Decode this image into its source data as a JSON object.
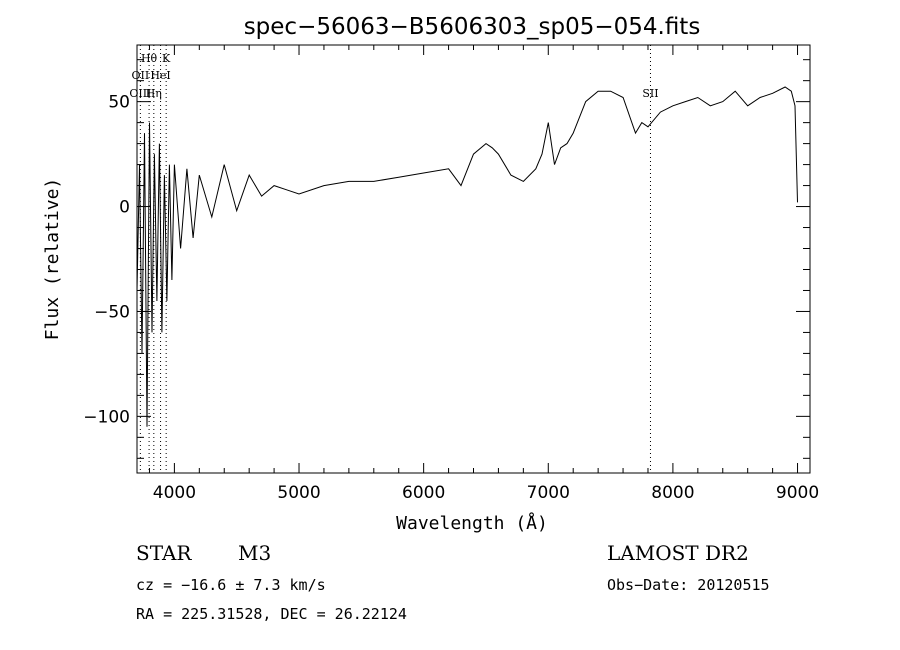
{
  "chart_data": {
    "type": "line",
    "title": "spec−56063−B5606303_sp05−054.fits",
    "xlabel": "Wavelength (Å)",
    "ylabel": "Flux (relative)",
    "xlim": [
      3700,
      9100
    ],
    "ylim": [
      -127,
      77
    ],
    "x_ticks": [
      4000,
      5000,
      6000,
      7000,
      8000,
      9000
    ],
    "y_ticks": [
      -100,
      -50,
      0,
      50
    ],
    "grid": false,
    "line_color": "#000000",
    "series": [
      {
        "x": [
          3700,
          3720,
          3740,
          3760,
          3780,
          3800,
          3820,
          3840,
          3860,
          3880,
          3900,
          3920,
          3940,
          3960,
          3980,
          4000,
          4050,
          4100,
          4150,
          4200,
          4300,
          4400,
          4500,
          4600,
          4700,
          4800,
          4900,
          5000,
          5200,
          5400,
          5600,
          5800,
          6000,
          6200,
          6300,
          6400,
          6500,
          6550,
          6600,
          6700,
          6800,
          6900,
          6950,
          7000,
          7050,
          7100,
          7150,
          7200,
          7300,
          7400,
          7500,
          7600,
          7700,
          7750,
          7800,
          7900,
          8000,
          8100,
          8200,
          8300,
          8400,
          8500,
          8600,
          8700,
          8800,
          8900,
          8950,
          8980,
          9000
        ],
        "y": [
          -40,
          20,
          -70,
          35,
          -105,
          40,
          -60,
          25,
          -45,
          30,
          -60,
          15,
          -45,
          20,
          -35,
          20,
          -20,
          18,
          -15,
          15,
          -5,
          20,
          -2,
          15,
          5,
          10,
          8,
          6,
          10,
          12,
          12,
          14,
          16,
          18,
          10,
          25,
          30,
          28,
          25,
          15,
          12,
          18,
          25,
          40,
          20,
          28,
          30,
          35,
          50,
          55,
          55,
          52,
          35,
          40,
          38,
          45,
          48,
          50,
          52,
          48,
          50,
          55,
          48,
          52,
          54,
          57,
          55,
          48,
          2
        ]
      }
    ],
    "annotations": [
      {
        "label": "Hθ",
        "x": 3797
      },
      {
        "label": "K",
        "x": 3934
      },
      {
        "label": "OII",
        "x": 3727
      },
      {
        "label": "HeI",
        "x": 3889
      },
      {
        "label": "OIII",
        "x": 3727
      },
      {
        "label": "Hη",
        "x": 3835
      },
      {
        "label": "SII",
        "x": 7820
      }
    ]
  },
  "info": {
    "object_type": "STAR",
    "subclass": "M3",
    "survey": "LAMOST DR2",
    "cz": "cz = −16.6 ± 7.3 km/s",
    "obs_date": "Obs−Date: 20120515",
    "coords": "RA = 225.31528, DEC =  26.22124"
  }
}
